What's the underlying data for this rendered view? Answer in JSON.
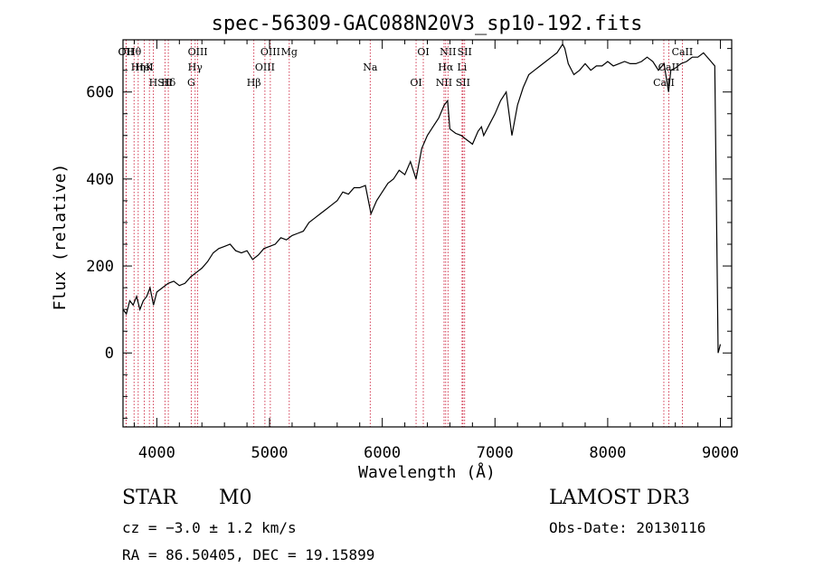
{
  "chart_data": {
    "type": "line",
    "title": "spec-56309-GAC088N20V3_sp10-192.fits",
    "xlabel": "Wavelength (Å)",
    "ylabel": "Flux (relative)",
    "xlim": [
      3700,
      9100
    ],
    "ylim": [
      -170,
      720
    ],
    "xticks": [
      4000,
      5000,
      6000,
      7000,
      8000,
      9000
    ],
    "yticks": [
      0,
      200,
      400,
      600
    ],
    "series": [
      {
        "name": "spectrum",
        "x": [
          3700,
          3730,
          3760,
          3790,
          3820,
          3850,
          3880,
          3910,
          3940,
          3970,
          4000,
          4050,
          4100,
          4150,
          4200,
          4250,
          4300,
          4350,
          4400,
          4450,
          4500,
          4550,
          4600,
          4650,
          4700,
          4750,
          4800,
          4850,
          4900,
          4950,
          5000,
          5050,
          5100,
          5150,
          5200,
          5250,
          5300,
          5350,
          5400,
          5450,
          5500,
          5550,
          5600,
          5650,
          5700,
          5750,
          5800,
          5850,
          5900,
          5950,
          6000,
          6050,
          6100,
          6150,
          6200,
          6250,
          6300,
          6350,
          6400,
          6450,
          6500,
          6550,
          6580,
          6600,
          6650,
          6700,
          6750,
          6800,
          6850,
          6880,
          6900,
          6950,
          7000,
          7050,
          7100,
          7150,
          7200,
          7250,
          7300,
          7350,
          7400,
          7450,
          7500,
          7550,
          7600,
          7620,
          7650,
          7700,
          7750,
          7800,
          7850,
          7900,
          7950,
          8000,
          8050,
          8100,
          8150,
          8200,
          8250,
          8300,
          8350,
          8400,
          8450,
          8500,
          8540,
          8560,
          8600,
          8650,
          8700,
          8750,
          8800,
          8850,
          8900,
          8950,
          8980,
          8990,
          9000
        ],
        "y": [
          100,
          90,
          120,
          110,
          130,
          100,
          120,
          130,
          150,
          110,
          140,
          150,
          160,
          165,
          155,
          160,
          175,
          185,
          195,
          210,
          230,
          240,
          245,
          250,
          235,
          230,
          235,
          215,
          225,
          240,
          245,
          250,
          265,
          260,
          270,
          275,
          280,
          300,
          310,
          320,
          330,
          340,
          350,
          370,
          365,
          380,
          380,
          385,
          320,
          350,
          370,
          390,
          400,
          420,
          410,
          440,
          400,
          470,
          500,
          520,
          540,
          570,
          580,
          515,
          505,
          500,
          490,
          480,
          510,
          520,
          500,
          525,
          550,
          580,
          600,
          500,
          570,
          610,
          640,
          650,
          660,
          670,
          680,
          690,
          710,
          700,
          665,
          640,
          650,
          665,
          650,
          660,
          660,
          670,
          660,
          665,
          670,
          665,
          665,
          670,
          680,
          670,
          650,
          665,
          600,
          650,
          655,
          665,
          670,
          680,
          680,
          690,
          675,
          660,
          0,
          10,
          20
        ]
      }
    ],
    "spectral_lines": [
      {
        "label": "Hθ",
        "x": 3798
      },
      {
        "label": "K",
        "x": 3934
      },
      {
        "label": "Hδ",
        "x": 4102
      },
      {
        "label": "OII",
        "x": 3727
      },
      {
        "label": "HeI",
        "x": 3889
      },
      {
        "label": "SII",
        "x": 4072
      },
      {
        "label": "OII",
        "x": 3727
      },
      {
        "label": "Hη",
        "x": 3835
      },
      {
        "label": "H",
        "x": 3968
      },
      {
        "label": "OIII",
        "x": 4363
      },
      {
        "label": "Hγ",
        "x": 4340
      },
      {
        "label": "G",
        "x": 4305
      },
      {
        "label": "OIII",
        "x": 5007
      },
      {
        "label": "OIII",
        "x": 4959
      },
      {
        "label": "Hβ",
        "x": 4861
      },
      {
        "label": "Mg",
        "x": 5175
      },
      {
        "label": "Na",
        "x": 5893
      },
      {
        "label": "OI",
        "x": 6300
      },
      {
        "label": "OI",
        "x": 6364
      },
      {
        "label": "Hα",
        "x": 6563
      },
      {
        "label": "SII",
        "x": 6716
      },
      {
        "label": "NII",
        "x": 6583
      },
      {
        "label": "Li",
        "x": 6708
      },
      {
        "label": "NII",
        "x": 6548
      },
      {
        "label": "SII",
        "x": 6731
      },
      {
        "label": "CaII",
        "x": 8542
      },
      {
        "label": "CaII",
        "x": 8498
      },
      {
        "label": "CaII",
        "x": 8662
      }
    ]
  },
  "info": {
    "class": "STAR",
    "subclass": "M0",
    "survey": "LAMOST DR3",
    "cz": "cz = −3.0 ± 1.2 km/s",
    "obsdate": "Obs-Date: 20130116",
    "coords": "RA =  86.50405, DEC =  19.15899"
  }
}
